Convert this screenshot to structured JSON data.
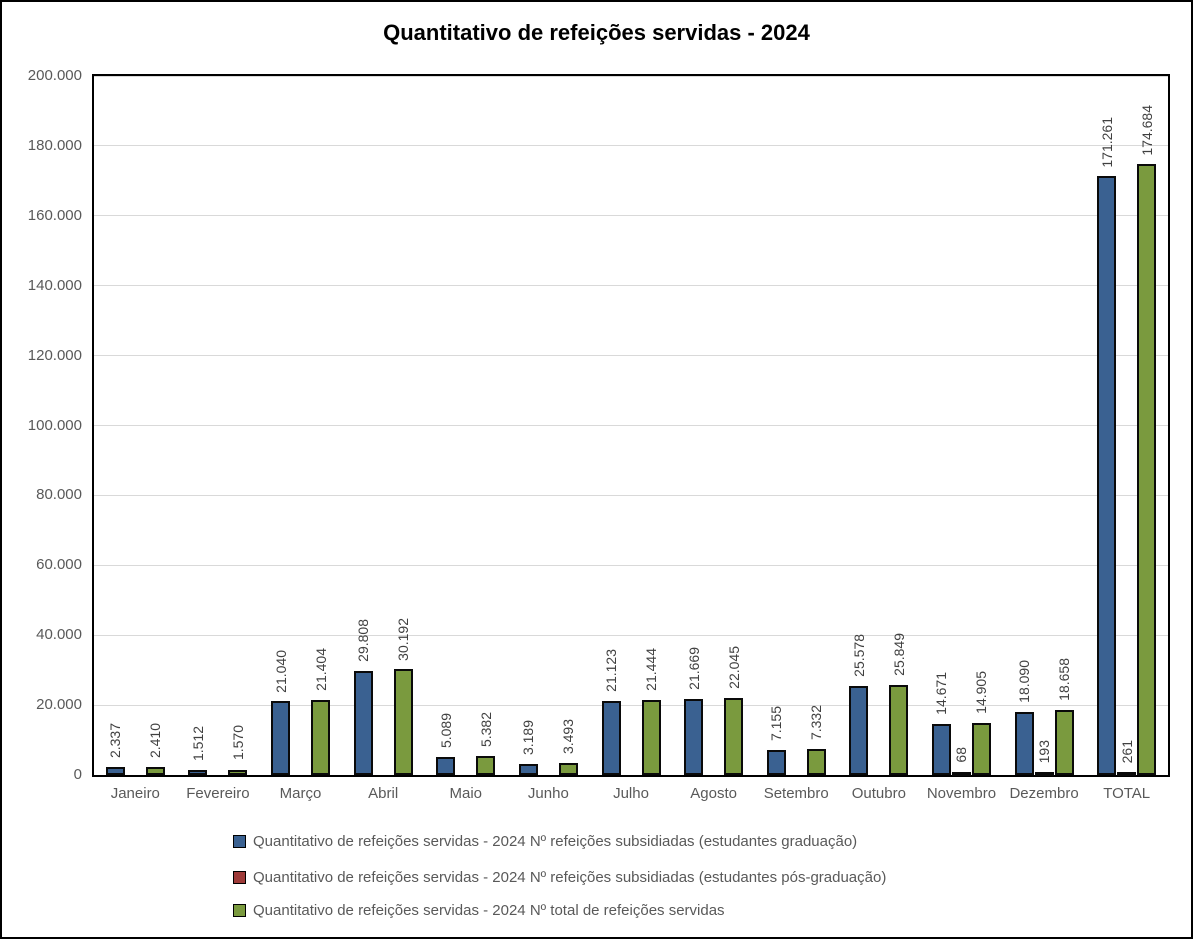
{
  "chart_data": {
    "type": "bar",
    "title": "Quantitativo de refeições servidas - 2024",
    "categories": [
      "Janeiro",
      "Fevereiro",
      "Março",
      "Abril",
      "Maio",
      "Junho",
      "Julho",
      "Agosto",
      "Setembro",
      "Outubro",
      "Novembro",
      "Dezembro",
      "TOTAL"
    ],
    "series": [
      {
        "key": "graduacao",
        "name": "Quantitativo de refeições servidas - 2024 Nº refeições subsidiadas (estudantes graduação)",
        "color": "#3a6191",
        "values": [
          2337,
          1512,
          21040,
          29808,
          5089,
          3189,
          21123,
          21669,
          7155,
          25578,
          14671,
          18090,
          171261
        ],
        "labels": [
          "2.337",
          "1.512",
          "21.040",
          "29.808",
          "5.089",
          "3.189",
          "21.123",
          "21.669",
          "7.155",
          "25.578",
          "14.671",
          "18.090",
          "171.261"
        ]
      },
      {
        "key": "pos_graduacao",
        "name": "Quantitativo de refeições servidas - 2024 Nº refeições subsidiadas (estudantes pós-graduação)",
        "color": "#9e3b39",
        "values": [
          0,
          0,
          0,
          0,
          0,
          0,
          0,
          0,
          0,
          0,
          68,
          193,
          261
        ],
        "labels": [
          "",
          "",
          "",
          "",
          "",
          "",
          "",
          "",
          "",
          "",
          "68",
          "193",
          "261"
        ]
      },
      {
        "key": "total",
        "name": "Quantitativo de refeições servidas - 2024 Nº total de refeições servidas",
        "color": "#7a9a3e",
        "values": [
          2410,
          1570,
          21404,
          30192,
          5382,
          3493,
          21444,
          22045,
          7332,
          25849,
          14905,
          18658,
          174684
        ],
        "labels": [
          "2.410",
          "1.570",
          "21.404",
          "30.192",
          "5.382",
          "3.493",
          "21.444",
          "22.045",
          "7.332",
          "25.849",
          "14.905",
          "18.658",
          "174.684"
        ]
      }
    ],
    "ylim": [
      0,
      200000
    ],
    "ytick_step": 20000,
    "ytick_labels": [
      "0",
      "20.000",
      "40.000",
      "60.000",
      "80.000",
      "100.000",
      "120.000",
      "140.000",
      "160.000",
      "180.000",
      "200.000"
    ],
    "grid": true,
    "legend_position": "bottom",
    "colors": {
      "bar_border": "#0a0a0a",
      "gridline": "#d9d9d9",
      "axis_label": "#595959",
      "data_label": "#404040",
      "plot_border": "#000000",
      "title": "#000000"
    }
  }
}
